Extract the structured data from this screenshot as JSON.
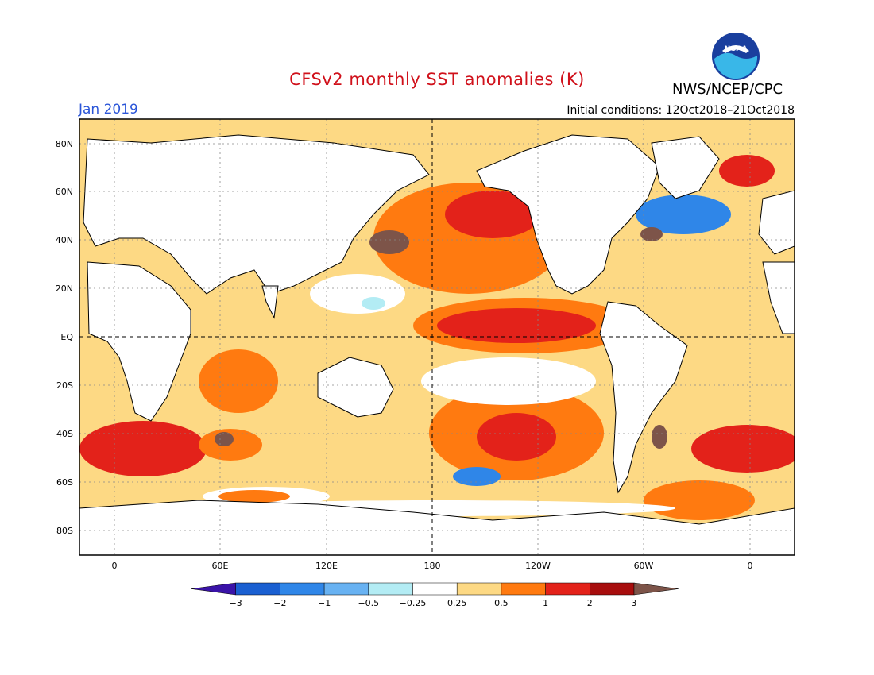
{
  "title": "CFSv2 monthly SST anomalies (K)",
  "forecast_month": "Jan 2019",
  "initial_conditions": "Initial conditions: 12Oct2018–21Oct2018",
  "agency": "NWS/NCEP/CPC",
  "logo_text": "NOAA",
  "lat_labels": [
    "80N",
    "60N",
    "40N",
    "20N",
    "EQ",
    "20S",
    "40S",
    "60S",
    "80S"
  ],
  "lon_labels": [
    "0",
    "60E",
    "120E",
    "180",
    "120W",
    "60W",
    "0"
  ],
  "colorbar": {
    "labels": [
      "−3",
      "−2",
      "−1",
      "−0.5",
      "−0.25",
      "0.25",
      "0.5",
      "1",
      "2",
      "3"
    ],
    "colors": [
      "#3a13a8",
      "#1a5fd1",
      "#2f86e8",
      "#68b2f2",
      "#b3ecf4",
      "#ffffff",
      "#fdd984",
      "#ff7a10",
      "#e3221a",
      "#a70d0d",
      "#7d5449"
    ]
  },
  "colors": {
    "land": "#ffffff",
    "coast": "#000000",
    "title": "#d0111b",
    "month": "#2a55d8"
  }
}
